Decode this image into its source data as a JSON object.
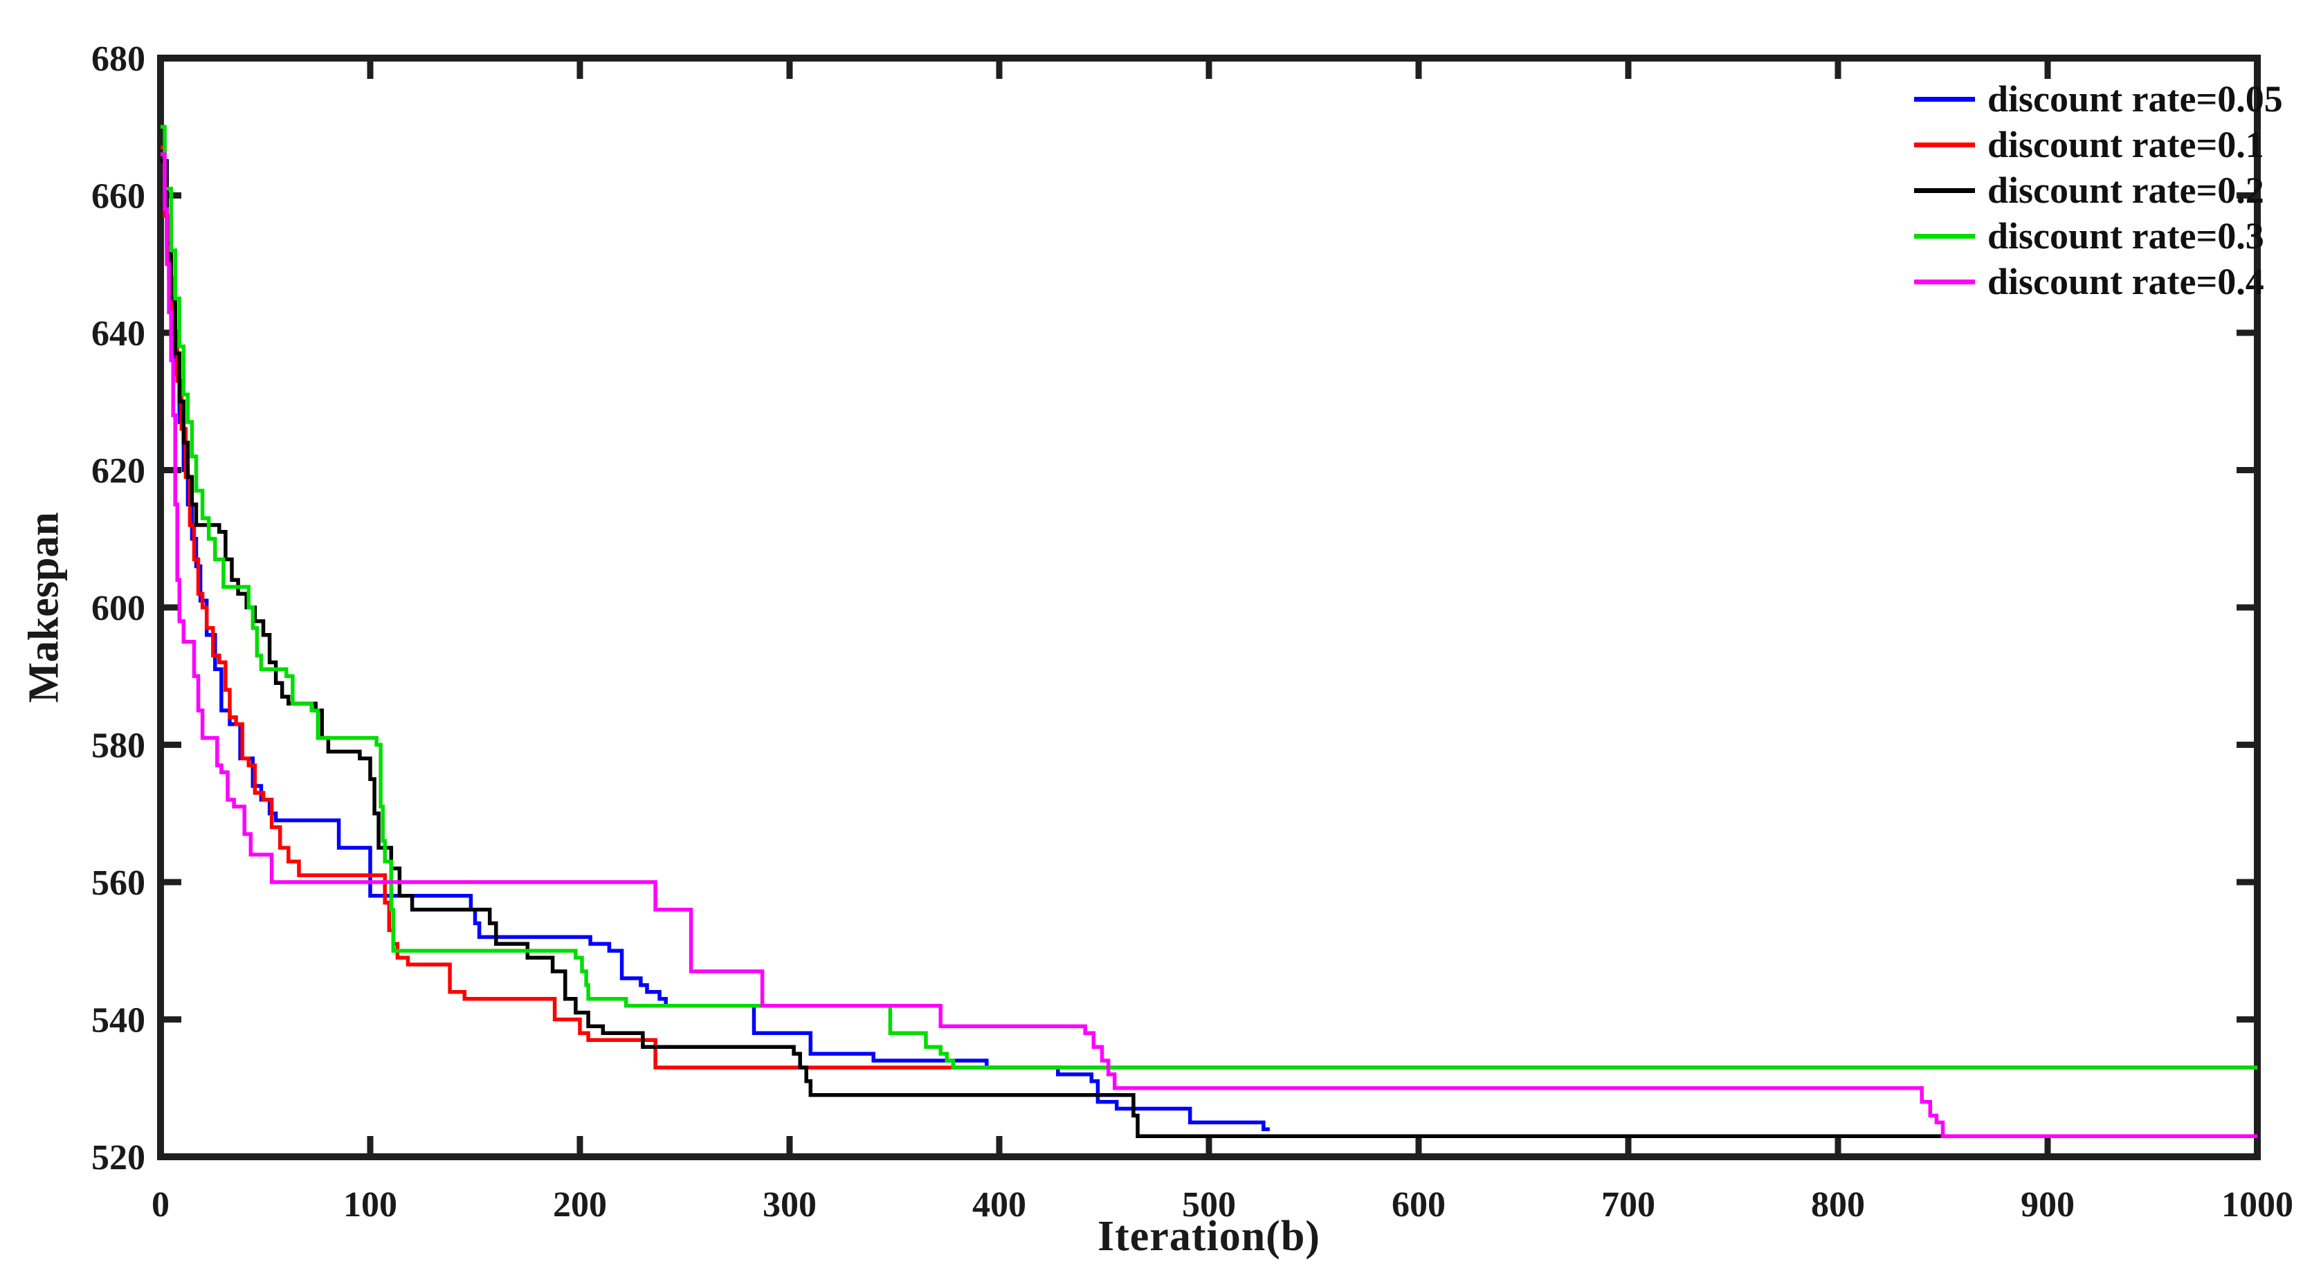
{
  "chart_data": {
    "type": "line",
    "title": "",
    "xlabel": "Iteration(b)",
    "ylabel": "Makespan",
    "xlim": [
      0,
      1000
    ],
    "ylim": [
      520,
      680
    ],
    "xticks": [
      0,
      100,
      200,
      300,
      400,
      500,
      600,
      700,
      800,
      900,
      1000
    ],
    "yticks": [
      520,
      540,
      560,
      580,
      600,
      620,
      640,
      660,
      680
    ],
    "grid": false,
    "legend_position": "northeast",
    "axis_color": "#1f1f1f",
    "tick_label_color": "#1a1a1a",
    "series": [
      {
        "name": "discount rate=0.05",
        "color": "#0000ff",
        "end": 529,
        "steps": [
          [
            0,
            665
          ],
          [
            3,
            651
          ],
          [
            5,
            642
          ],
          [
            7,
            634
          ],
          [
            9,
            627
          ],
          [
            11,
            620
          ],
          [
            13,
            615
          ],
          [
            15,
            610
          ],
          [
            17,
            606
          ],
          [
            19,
            601
          ],
          [
            22,
            596
          ],
          [
            26,
            591
          ],
          [
            29,
            585
          ],
          [
            33,
            583
          ],
          [
            38,
            578
          ],
          [
            44,
            574
          ],
          [
            48,
            572
          ],
          [
            52,
            570
          ],
          [
            55,
            569
          ],
          [
            85,
            565
          ],
          [
            100,
            558
          ],
          [
            148,
            556
          ],
          [
            150,
            554
          ],
          [
            152,
            552
          ],
          [
            205,
            551
          ],
          [
            214,
            550
          ],
          [
            220,
            546
          ],
          [
            229,
            545
          ],
          [
            232,
            544
          ],
          [
            238,
            543
          ],
          [
            241,
            542
          ],
          [
            283,
            538
          ],
          [
            310,
            535
          ],
          [
            340,
            534
          ],
          [
            394,
            533
          ],
          [
            428,
            532
          ],
          [
            444,
            531
          ],
          [
            447,
            528
          ],
          [
            456,
            527
          ],
          [
            491,
            525
          ],
          [
            526,
            524
          ]
        ]
      },
      {
        "name": "discount rate=0.1",
        "color": "#ff0000",
        "end": 1000,
        "steps": [
          [
            0,
            667
          ],
          [
            2,
            657
          ],
          [
            4,
            648
          ],
          [
            6,
            640
          ],
          [
            8,
            633
          ],
          [
            10,
            626
          ],
          [
            12,
            619
          ],
          [
            14,
            612
          ],
          [
            16,
            607
          ],
          [
            18,
            602
          ],
          [
            20,
            600
          ],
          [
            22,
            597
          ],
          [
            25,
            593
          ],
          [
            28,
            592
          ],
          [
            31,
            588
          ],
          [
            33,
            584
          ],
          [
            36,
            583
          ],
          [
            39,
            578
          ],
          [
            42,
            577
          ],
          [
            45,
            573
          ],
          [
            49,
            572
          ],
          [
            53,
            568
          ],
          [
            57,
            565
          ],
          [
            61,
            563
          ],
          [
            66,
            561
          ],
          [
            107,
            557
          ],
          [
            109,
            553
          ],
          [
            111,
            551
          ],
          [
            113,
            549
          ],
          [
            118,
            548
          ],
          [
            138,
            544
          ],
          [
            145,
            543
          ],
          [
            188,
            540
          ],
          [
            200,
            538
          ],
          [
            204,
            537
          ],
          [
            236,
            533
          ]
        ]
      },
      {
        "name": "discount rate=0.2",
        "color": "#000000",
        "end": 1000,
        "steps": [
          [
            0,
            665
          ],
          [
            3,
            653
          ],
          [
            5,
            645
          ],
          [
            7,
            637
          ],
          [
            9,
            630
          ],
          [
            11,
            624
          ],
          [
            13,
            619
          ],
          [
            15,
            615
          ],
          [
            17,
            612
          ],
          [
            28,
            611
          ],
          [
            31,
            607
          ],
          [
            34,
            604
          ],
          [
            37,
            602
          ],
          [
            41,
            600
          ],
          [
            45,
            598
          ],
          [
            49,
            596
          ],
          [
            52,
            592
          ],
          [
            55,
            589
          ],
          [
            58,
            587
          ],
          [
            61,
            586
          ],
          [
            74,
            585
          ],
          [
            77,
            581
          ],
          [
            80,
            579
          ],
          [
            95,
            578
          ],
          [
            100,
            575
          ],
          [
            102,
            570
          ],
          [
            104,
            565
          ],
          [
            110,
            562
          ],
          [
            114,
            558
          ],
          [
            120,
            556
          ],
          [
            157,
            554
          ],
          [
            160,
            551
          ],
          [
            175,
            549
          ],
          [
            187,
            547
          ],
          [
            193,
            543
          ],
          [
            198,
            541
          ],
          [
            204,
            539
          ],
          [
            211,
            538
          ],
          [
            230,
            536
          ],
          [
            302,
            535
          ],
          [
            305,
            533
          ],
          [
            308,
            531
          ],
          [
            310,
            529
          ],
          [
            464,
            526
          ],
          [
            466,
            523
          ]
        ]
      },
      {
        "name": "discount rate=0.3",
        "color": "#00dd00",
        "end": 1000,
        "steps": [
          [
            0,
            670
          ],
          [
            2,
            661
          ],
          [
            5,
            652
          ],
          [
            7,
            645
          ],
          [
            9,
            638
          ],
          [
            11,
            631
          ],
          [
            13,
            627
          ],
          [
            15,
            622
          ],
          [
            17,
            617
          ],
          [
            20,
            613
          ],
          [
            23,
            610
          ],
          [
            26,
            607
          ],
          [
            30,
            603
          ],
          [
            42,
            600
          ],
          [
            44,
            597
          ],
          [
            46,
            593
          ],
          [
            48,
            591
          ],
          [
            60,
            590
          ],
          [
            63,
            586
          ],
          [
            72,
            585
          ],
          [
            75,
            581
          ],
          [
            103,
            580
          ],
          [
            105,
            571
          ],
          [
            106,
            566
          ],
          [
            107,
            563
          ],
          [
            110,
            556
          ],
          [
            111,
            550
          ],
          [
            198,
            549
          ],
          [
            201,
            547
          ],
          [
            203,
            545
          ],
          [
            204,
            543
          ],
          [
            222,
            542
          ],
          [
            348,
            538
          ],
          [
            365,
            536
          ],
          [
            372,
            535
          ],
          [
            375,
            534
          ],
          [
            378,
            533
          ]
        ]
      },
      {
        "name": "discount rate=0.4",
        "color": "#ff00ff",
        "end": 1000,
        "steps": [
          [
            0,
            666
          ],
          [
            2,
            658
          ],
          [
            3,
            650
          ],
          [
            4,
            643
          ],
          [
            5,
            636
          ],
          [
            6,
            628
          ],
          [
            7,
            615
          ],
          [
            8,
            604
          ],
          [
            9,
            598
          ],
          [
            11,
            595
          ],
          [
            16,
            590
          ],
          [
            18,
            585
          ],
          [
            20,
            581
          ],
          [
            27,
            577
          ],
          [
            29,
            576
          ],
          [
            32,
            572
          ],
          [
            35,
            571
          ],
          [
            40,
            567
          ],
          [
            43,
            564
          ],
          [
            53,
            560
          ],
          [
            236,
            556
          ],
          [
            253,
            547
          ],
          [
            287,
            542
          ],
          [
            372,
            539
          ],
          [
            441,
            538
          ],
          [
            445,
            536
          ],
          [
            449,
            534
          ],
          [
            452,
            532
          ],
          [
            455,
            530
          ],
          [
            840,
            528
          ],
          [
            844,
            526
          ],
          [
            847,
            525
          ],
          [
            850,
            523
          ]
        ]
      }
    ]
  }
}
